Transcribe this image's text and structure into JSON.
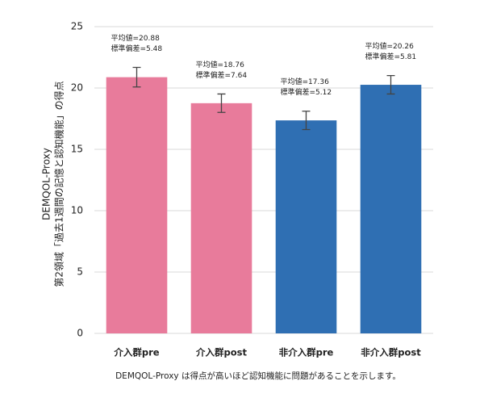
{
  "chart_data": {
    "type": "bar",
    "y_label": [
      "DEMQOL-Proxy",
      "第2領域「過去1週間の記憶と認知機能」の得点"
    ],
    "categories": [
      "介入群pre",
      "介入群post",
      "非介入群pre",
      "非介入群post"
    ],
    "values": [
      20.88,
      18.76,
      17.36,
      20.26
    ],
    "errors": [
      0.8,
      0.75,
      0.75,
      0.75
    ],
    "colors": [
      "#e87b9b",
      "#e87b9b",
      "#2f6fb3",
      "#2f6fb3"
    ],
    "annotations": [
      [
        "平均値=20.88",
        "標準偏差=5.48"
      ],
      [
        "平均値=18.76",
        "標準偏差=7.64"
      ],
      [
        "平均値=17.36",
        "標準偏差=5.12"
      ],
      [
        "平均値=20.26",
        "標準偏差=5.81"
      ]
    ],
    "ylim": [
      0,
      25
    ],
    "yticks": [
      0,
      5,
      10,
      15,
      20,
      25
    ],
    "grid": true,
    "footnote": "DEMQOL-Proxy は得点が高いほど認知機能に問題があることを示します。"
  }
}
